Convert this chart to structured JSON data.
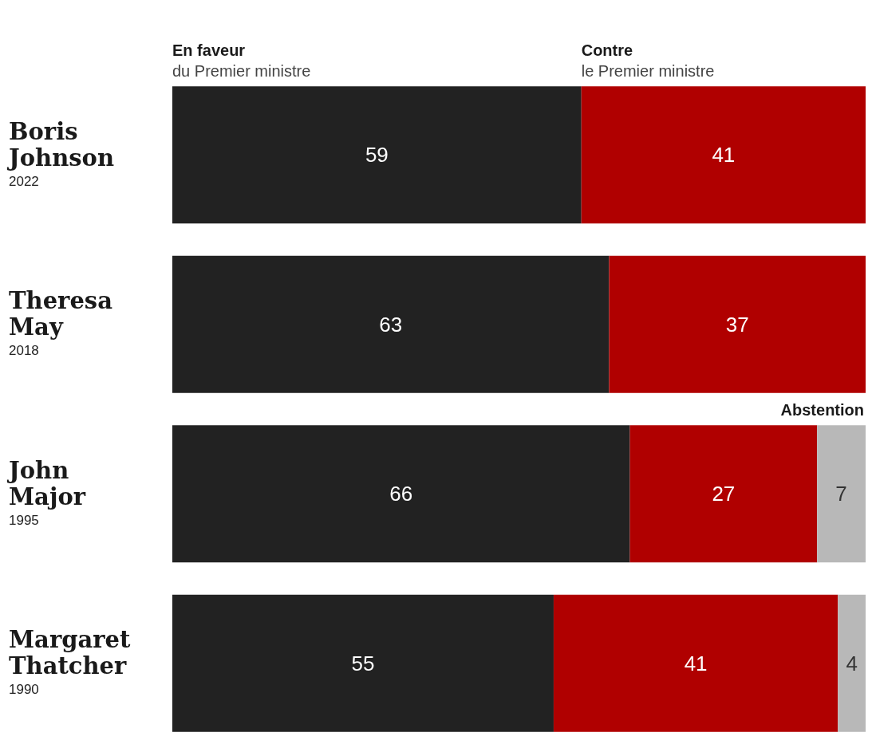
{
  "chart_data": {
    "type": "bar",
    "orientation": "horizontal",
    "stacked": true,
    "data_labels": true,
    "legend": "top",
    "tick_labels": "y",
    "xlim": [
      0,
      100
    ],
    "categories": [
      "Boris\nJohnson\n2022",
      "Theresa\nMay\n2018",
      "John\nMajor\n1995",
      "Margaret\nThatcher\n1990"
    ],
    "series": [
      {
        "name": "En faveur\ndu Premier ministre",
        "color": "#222222",
        "values": [
          59,
          63,
          66,
          55
        ]
      },
      {
        "name": "Contre\nle Premier ministre",
        "color": "#b00000",
        "values": [
          41,
          37,
          27,
          41
        ]
      },
      {
        "name": "Abstention",
        "color": "#b8b8b8",
        "values": [
          null,
          null,
          7,
          4
        ]
      }
    ]
  }
}
